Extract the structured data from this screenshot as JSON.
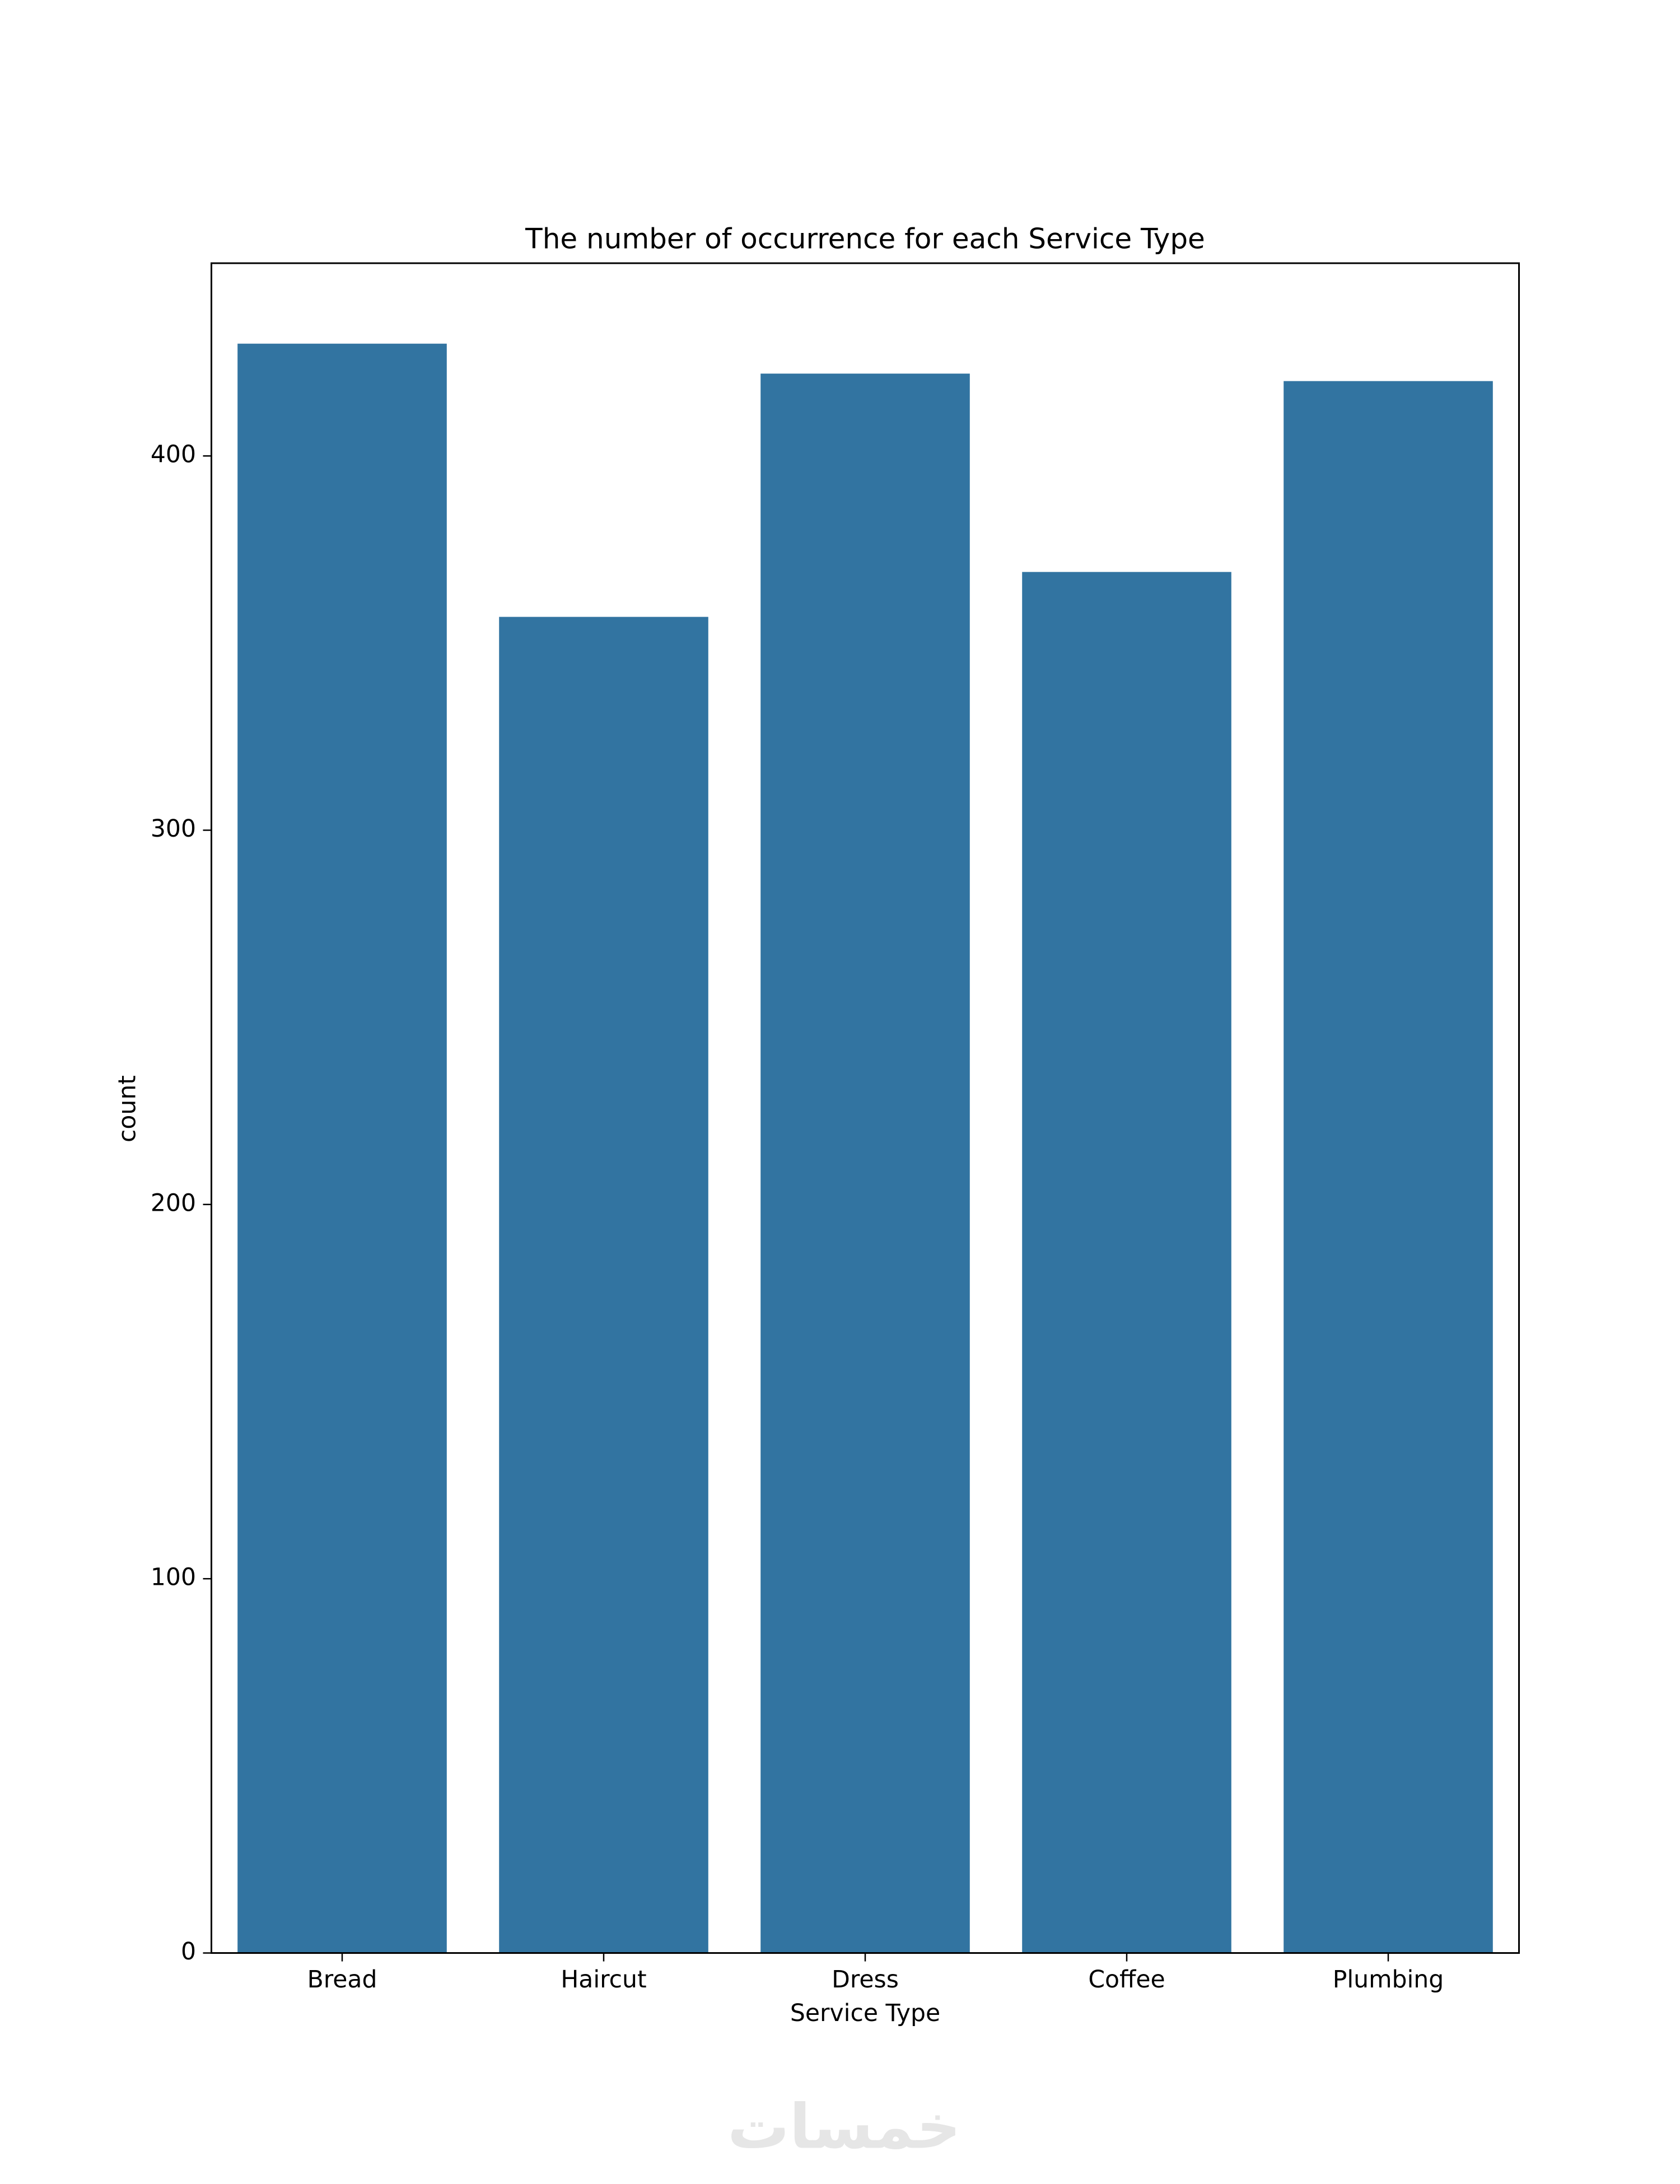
{
  "chart_data": {
    "type": "bar",
    "title": "The number of occurrence for each Service Type",
    "x_label": "Service Type",
    "y_label": "count",
    "categories": [
      "Bread",
      "Haircut",
      "Dress",
      "Coffee",
      "Plumbing"
    ],
    "values": [
      430,
      357,
      422,
      369,
      420
    ],
    "color": "#3274a1",
    "ylim": [
      0,
      451.5
    ],
    "yticks": [
      0,
      100,
      200,
      300,
      400
    ],
    "grid": false,
    "watermark": "خمسات"
  }
}
